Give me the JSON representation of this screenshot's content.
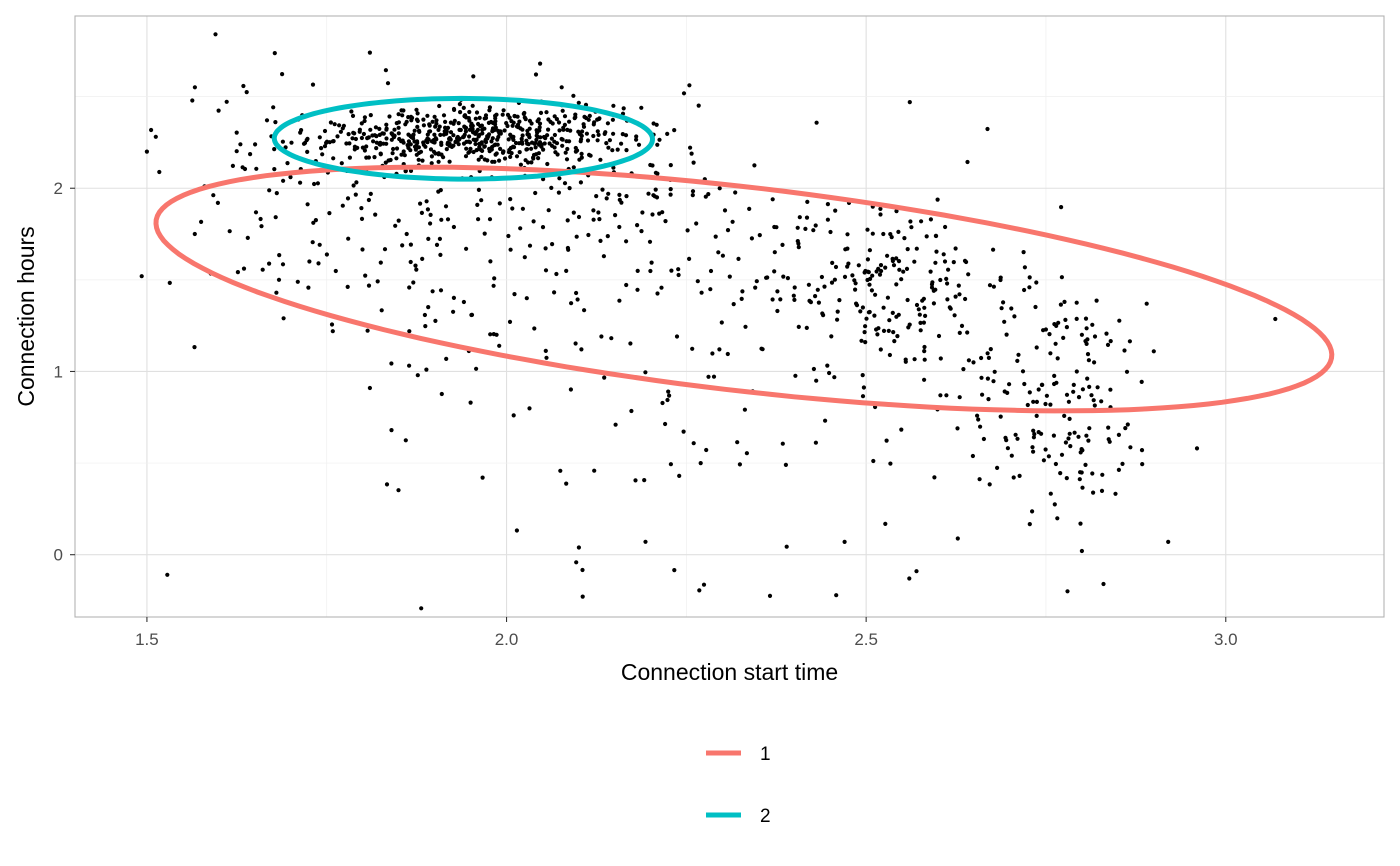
{
  "chart_data": {
    "type": "scatter",
    "title": "",
    "xlabel": "Connection start time",
    "ylabel": "Connection hours",
    "xlim": [
      1.4,
      3.22
    ],
    "ylim": [
      -0.34,
      2.94
    ],
    "x_ticks": [
      1.5,
      2.0,
      2.5,
      3.0
    ],
    "x_tick_labels": [
      "1.5",
      "2.0",
      "2.5",
      "3.0"
    ],
    "y_ticks": [
      0,
      1,
      2
    ],
    "y_tick_labels": [
      "0",
      "1",
      "2"
    ],
    "grid": true,
    "legend_position": "bottom",
    "point_color": "#000000",
    "point_clusters": [
      {
        "cx": 1.95,
        "cy": 2.28,
        "sx": 0.11,
        "sy": 0.08,
        "n": 520
      },
      {
        "cx": 1.92,
        "cy": 1.85,
        "sx": 0.17,
        "sy": 0.38,
        "n": 210
      },
      {
        "cx": 2.17,
        "cy": 1.95,
        "sx": 0.09,
        "sy": 0.25,
        "n": 80
      },
      {
        "cx": 2.52,
        "cy": 1.5,
        "sx": 0.09,
        "sy": 0.24,
        "n": 200
      },
      {
        "cx": 2.77,
        "cy": 0.85,
        "sx": 0.07,
        "sy": 0.32,
        "n": 170
      },
      {
        "cx": 2.3,
        "cy": 1.05,
        "sx": 0.24,
        "sy": 0.55,
        "n": 130
      },
      {
        "cx": 1.68,
        "cy": 2.1,
        "sx": 0.08,
        "sy": 0.35,
        "n": 35
      }
    ],
    "outlier_points": [
      {
        "x": 1.81,
        "y": 2.74
      },
      {
        "x": 1.84,
        "y": 0.68
      },
      {
        "x": 1.95,
        "y": 0.83
      },
      {
        "x": 2.01,
        "y": 0.76
      },
      {
        "x": 1.5,
        "y": 2.2
      },
      {
        "x": 2.47,
        "y": 0.07
      },
      {
        "x": 2.56,
        "y": -0.13
      },
      {
        "x": 2.57,
        "y": -0.09
      },
      {
        "x": 2.78,
        "y": -0.2
      },
      {
        "x": 2.83,
        "y": -0.16
      },
      {
        "x": 2.92,
        "y": 0.07
      },
      {
        "x": 2.96,
        "y": 0.58
      },
      {
        "x": 2.9,
        "y": 1.11
      },
      {
        "x": 2.89,
        "y": 1.37
      },
      {
        "x": 2.9,
        "y": 0.8
      },
      {
        "x": 2.27,
        "y": 0.5
      },
      {
        "x": 2.24,
        "y": 0.43
      },
      {
        "x": 1.68,
        "y": 1.43
      },
      {
        "x": 1.69,
        "y": 1.29
      },
      {
        "x": 1.81,
        "y": 0.91
      },
      {
        "x": 1.63,
        "y": 2.24
      },
      {
        "x": 1.58,
        "y": 2.01
      },
      {
        "x": 2.8,
        "y": 0.02
      }
    ],
    "series": [
      {
        "name": "1",
        "color": "#F8766D",
        "ellipse": {
          "center_x": 2.33,
          "center_y": 1.45,
          "semi_major": 0.933,
          "semi_minor": 0.49,
          "angle_deg": -34.5
        }
      },
      {
        "name": "2",
        "color": "#00BFC4",
        "ellipse": {
          "center_x": 1.94,
          "center_y": 2.27,
          "semi_major": 0.263,
          "semi_minor": 0.22,
          "angle_deg": -2
        }
      }
    ]
  }
}
